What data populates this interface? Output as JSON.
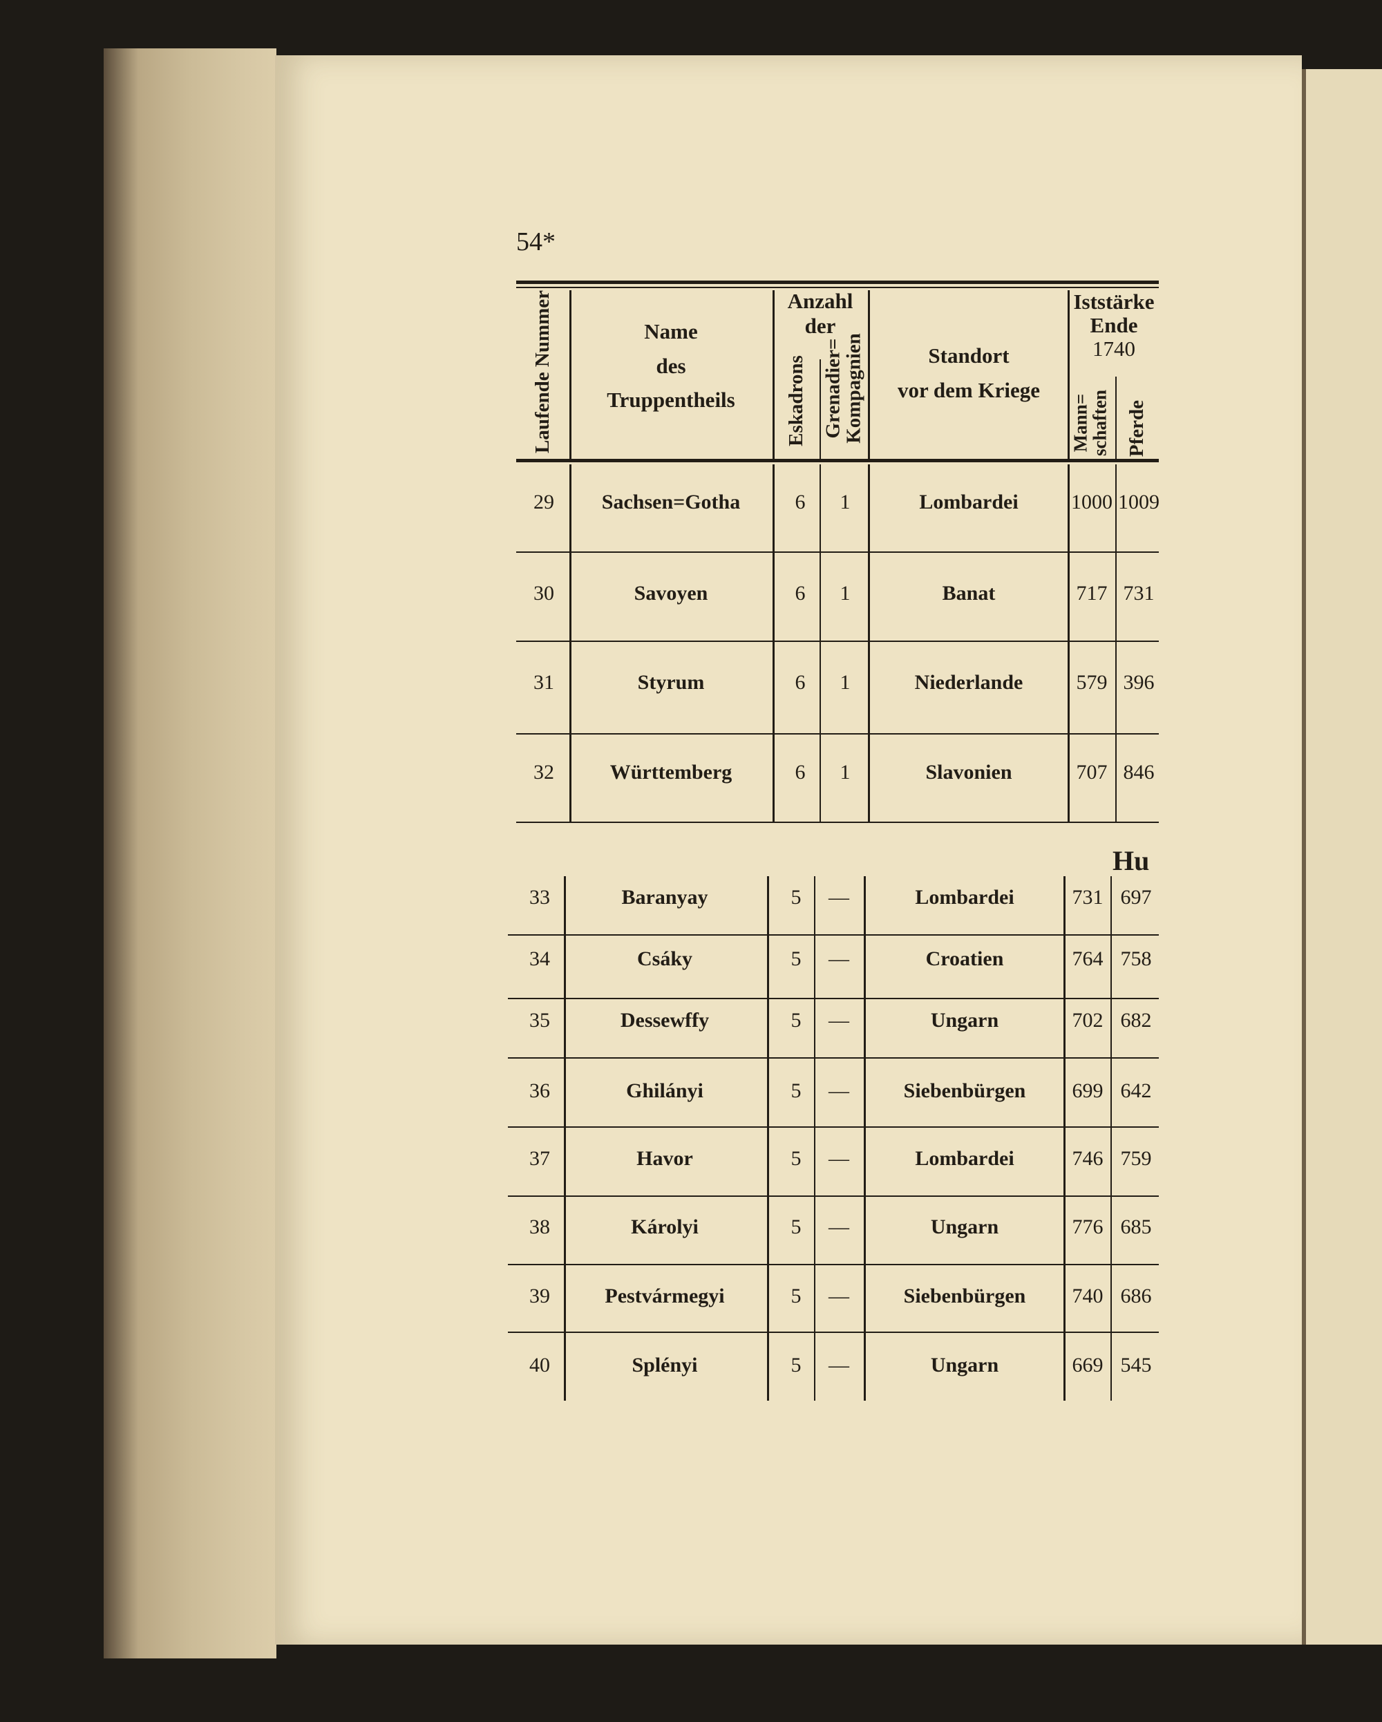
{
  "page_number": "54*",
  "header": {
    "laufende_nummer": "Laufende Nummer",
    "name": [
      "Name",
      "des",
      "Truppentheils"
    ],
    "anzahl": [
      "Anzahl",
      "der"
    ],
    "eskadrons": "Eskadrons",
    "grenadier": [
      "Grenadier=",
      "Kompagnien"
    ],
    "standort": [
      "Standort",
      "vor dem Kriege"
    ],
    "iststaerke": [
      "Iststärke",
      "Ende",
      "1740"
    ],
    "mannschaften": [
      "Mann=",
      "schaften"
    ],
    "pferde": "Pferde"
  },
  "section_heading": "Hu",
  "rows_a": [
    {
      "nr": "29",
      "name": "Sachsen=Gotha",
      "esk": "6",
      "gren": "1",
      "standort": "Lombardei",
      "mann": "1000",
      "pferde": "1009"
    },
    {
      "nr": "30",
      "name": "Savoyen",
      "esk": "6",
      "gren": "1",
      "standort": "Banat",
      "mann": "717",
      "pferde": "731"
    },
    {
      "nr": "31",
      "name": "Styrum",
      "esk": "6",
      "gren": "1",
      "standort": "Niederlande",
      "mann": "579",
      "pferde": "396"
    },
    {
      "nr": "32",
      "name": "Württemberg",
      "esk": "6",
      "gren": "1",
      "standort": "Slavonien",
      "mann": "707",
      "pferde": "846"
    }
  ],
  "rows_b": [
    {
      "nr": "33",
      "name": "Baranyay",
      "esk": "5",
      "gren": "—",
      "standort": "Lombardei",
      "mann": "731",
      "pferde": "697"
    },
    {
      "nr": "34",
      "name": "Csáky",
      "esk": "5",
      "gren": "—",
      "standort": "Croatien",
      "mann": "764",
      "pferde": "758"
    },
    {
      "nr": "35",
      "name": "Dessewffy",
      "esk": "5",
      "gren": "—",
      "standort": "Ungarn",
      "mann": "702",
      "pferde": "682"
    },
    {
      "nr": "36",
      "name": "Ghilányi",
      "esk": "5",
      "gren": "—",
      "standort": "Siebenbürgen",
      "mann": "699",
      "pferde": "642"
    },
    {
      "nr": "37",
      "name": "Havor",
      "esk": "5",
      "gren": "—",
      "standort": "Lombardei",
      "mann": "746",
      "pferde": "759"
    },
    {
      "nr": "38",
      "name": "Károlyi",
      "esk": "5",
      "gren": "—",
      "standort": "Ungarn",
      "mann": "776",
      "pferde": "685"
    },
    {
      "nr": "39",
      "name": "Pestvármegyi",
      "esk": "5",
      "gren": "—",
      "standort": "Siebenbürgen",
      "mann": "740",
      "pferde": "686"
    },
    {
      "nr": "40",
      "name": "Splényi",
      "esk": "5",
      "gren": "—",
      "standort": "Ungarn",
      "mann": "669",
      "pferde": "545"
    }
  ]
}
